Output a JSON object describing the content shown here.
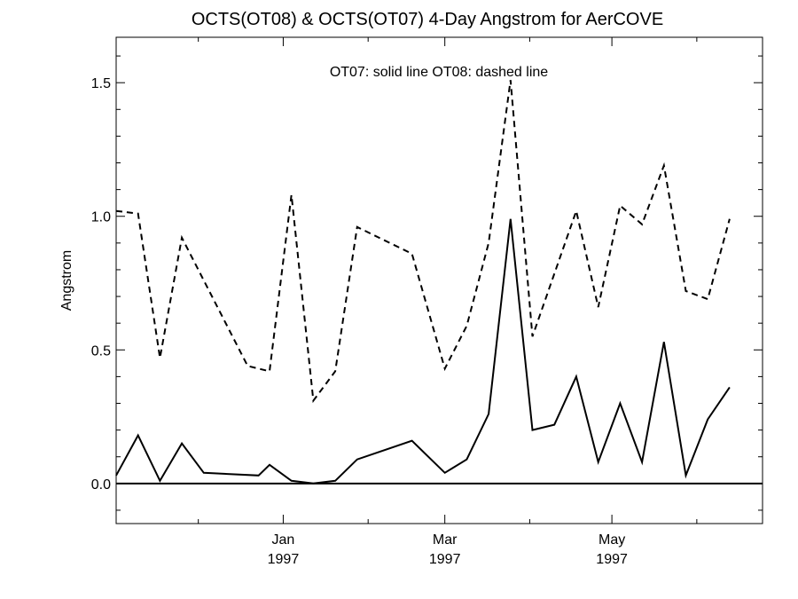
{
  "chart_data": {
    "type": "line",
    "title": "OCTS(OT08) & OCTS(OT07) 4-Day Angstrom for AerCOVE",
    "ylabel": "Angstrom",
    "xlabel": "",
    "annotation": "OT07: solid line   OT08: dashed line",
    "xlim": [
      "1996-11-01",
      "1997-06-25"
    ],
    "ylim": [
      -0.15,
      1.67
    ],
    "x_ticks": [
      {
        "date": "1997-01-01",
        "month": "Jan",
        "year": "1997"
      },
      {
        "date": "1997-03-01",
        "month": "Mar",
        "year": "1997"
      },
      {
        "date": "1997-05-01",
        "month": "May",
        "year": "1997"
      }
    ],
    "y_ticks": [
      {
        "value": 0.0,
        "label": "0.0"
      },
      {
        "value": 0.5,
        "label": "0.5"
      },
      {
        "value": 1.0,
        "label": "1.0"
      },
      {
        "value": 1.5,
        "label": "1.5"
      }
    ],
    "zero_line": true,
    "series": [
      {
        "name": "OT07",
        "style": "solid",
        "color": "#000000",
        "points": [
          {
            "x": "1996-11-01",
            "y": 0.03
          },
          {
            "x": "1996-11-09",
            "y": 0.18
          },
          {
            "x": "1996-11-17",
            "y": 0.01
          },
          {
            "x": "1996-11-25",
            "y": 0.15
          },
          {
            "x": "1996-12-03",
            "y": 0.04
          },
          {
            "x": "1996-12-23",
            "y": 0.03
          },
          {
            "x": "1996-12-27",
            "y": 0.07
          },
          {
            "x": "1997-01-04",
            "y": 0.01
          },
          {
            "x": "1997-01-12",
            "y": 0.0
          },
          {
            "x": "1997-01-20",
            "y": 0.01
          },
          {
            "x": "1997-01-28",
            "y": 0.09
          },
          {
            "x": "1997-02-17",
            "y": 0.16
          },
          {
            "x": "1997-03-01",
            "y": 0.04
          },
          {
            "x": "1997-03-09",
            "y": 0.09
          },
          {
            "x": "1997-03-17",
            "y": 0.26
          },
          {
            "x": "1997-03-25",
            "y": 0.99
          },
          {
            "x": "1997-04-02",
            "y": 0.2
          },
          {
            "x": "1997-04-10",
            "y": 0.22
          },
          {
            "x": "1997-04-18",
            "y": 0.4
          },
          {
            "x": "1997-04-26",
            "y": 0.08
          },
          {
            "x": "1997-05-04",
            "y": 0.3
          },
          {
            "x": "1997-05-12",
            "y": 0.08
          },
          {
            "x": "1997-05-20",
            "y": 0.53
          },
          {
            "x": "1997-05-28",
            "y": 0.03
          },
          {
            "x": "1997-06-05",
            "y": 0.24
          },
          {
            "x": "1997-06-13",
            "y": 0.36
          }
        ]
      },
      {
        "name": "OT08",
        "style": "dashed",
        "color": "#000000",
        "points": [
          {
            "x": "1996-11-01",
            "y": 1.02
          },
          {
            "x": "1996-11-09",
            "y": 1.01
          },
          {
            "x": "1996-11-17",
            "y": 0.47
          },
          {
            "x": "1996-11-25",
            "y": 0.92
          },
          {
            "x": "1996-12-19",
            "y": 0.44
          },
          {
            "x": "1996-12-27",
            "y": 0.42
          },
          {
            "x": "1997-01-04",
            "y": 1.08
          },
          {
            "x": "1997-01-12",
            "y": 0.31
          },
          {
            "x": "1997-01-20",
            "y": 0.42
          },
          {
            "x": "1997-01-28",
            "y": 0.96
          },
          {
            "x": "1997-02-17",
            "y": 0.86
          },
          {
            "x": "1997-03-01",
            "y": 0.43
          },
          {
            "x": "1997-03-09",
            "y": 0.59
          },
          {
            "x": "1997-03-17",
            "y": 0.9
          },
          {
            "x": "1997-03-25",
            "y": 1.51
          },
          {
            "x": "1997-04-02",
            "y": 0.55
          },
          {
            "x": "1997-04-18",
            "y": 1.02
          },
          {
            "x": "1997-04-26",
            "y": 0.66
          },
          {
            "x": "1997-05-04",
            "y": 1.04
          },
          {
            "x": "1997-05-12",
            "y": 0.97
          },
          {
            "x": "1997-05-20",
            "y": 1.19
          },
          {
            "x": "1997-05-28",
            "y": 0.72
          },
          {
            "x": "1997-06-05",
            "y": 0.69
          },
          {
            "x": "1997-06-13",
            "y": 0.99
          }
        ]
      }
    ]
  }
}
